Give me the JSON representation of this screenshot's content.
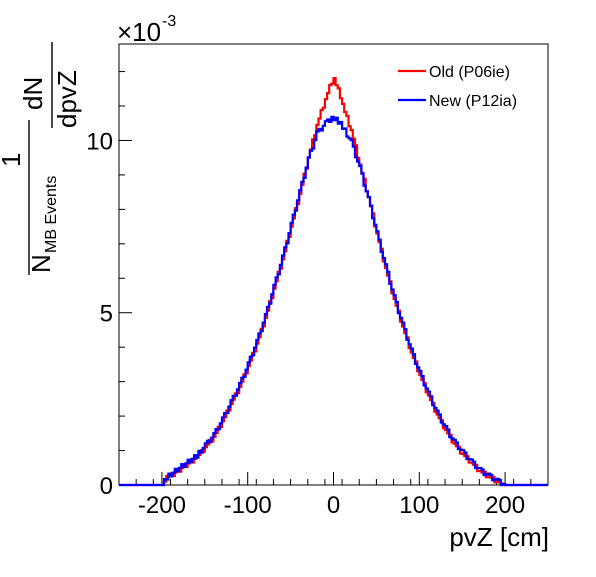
{
  "chart_data": {
    "type": "line",
    "title": "",
    "xlabel": "pvZ [cm]",
    "ylabel": {
      "numerator_one": "1",
      "denominator_n": "N",
      "denominator_sub": "MB Events",
      "fraction_top": "dN",
      "fraction_bottom": "dpvZ"
    },
    "y_exponent": {
      "base": "×10",
      "exponent": "-3"
    },
    "xlim": [
      -250,
      250
    ],
    "ylim": [
      0,
      12.8
    ],
    "x_ticks": [
      -200,
      -100,
      0,
      100,
      200
    ],
    "x_tick_labels": [
      "-200",
      "-100",
      "0",
      "100",
      "200"
    ],
    "y_ticks": [
      0,
      5,
      10
    ],
    "y_tick_labels": [
      "0",
      "5",
      "10"
    ],
    "y_unit_scale": "1e-3",
    "legend_position": "top-right",
    "grid": false,
    "series": [
      {
        "name": "Old (P06ie)",
        "color": "#ff0000",
        "x": [
          -250,
          -200,
          -195,
          -180,
          -160,
          -150,
          -140,
          -130,
          -120,
          -110,
          -100,
          -90,
          -80,
          -70,
          -60,
          -50,
          -40,
          -30,
          -20,
          -10,
          -5,
          0,
          5,
          10,
          20,
          30,
          40,
          50,
          60,
          70,
          80,
          90,
          100,
          110,
          120,
          130,
          140,
          150,
          160,
          170,
          180,
          190,
          200,
          250
        ],
        "values": [
          0,
          0,
          0.2,
          0.45,
          0.8,
          1.1,
          1.4,
          1.85,
          2.35,
          2.85,
          3.45,
          4.1,
          4.85,
          5.7,
          6.55,
          7.5,
          8.45,
          9.5,
          10.45,
          11.2,
          11.55,
          11.75,
          11.45,
          11.0,
          10.3,
          9.3,
          8.35,
          7.3,
          6.3,
          5.4,
          4.6,
          3.85,
          3.2,
          2.6,
          2.05,
          1.6,
          1.2,
          0.9,
          0.65,
          0.4,
          0.25,
          0.1,
          0,
          0
        ]
      },
      {
        "name": "New (P12ia)",
        "color": "#0000ff",
        "x": [
          -250,
          -200,
          -195,
          -180,
          -160,
          -150,
          -140,
          -130,
          -120,
          -110,
          -100,
          -90,
          -80,
          -70,
          -60,
          -50,
          -40,
          -30,
          -20,
          -10,
          -5,
          0,
          5,
          10,
          20,
          30,
          40,
          50,
          60,
          70,
          80,
          90,
          100,
          110,
          120,
          130,
          140,
          150,
          160,
          170,
          180,
          190,
          200,
          250
        ],
        "values": [
          0,
          0,
          0.22,
          0.5,
          0.85,
          1.15,
          1.45,
          1.9,
          2.4,
          2.9,
          3.5,
          4.15,
          4.9,
          5.75,
          6.6,
          7.55,
          8.5,
          9.45,
          10.2,
          10.5,
          10.6,
          10.65,
          10.55,
          10.4,
          9.95,
          9.2,
          8.3,
          7.3,
          6.35,
          5.45,
          4.65,
          3.9,
          3.25,
          2.65,
          2.1,
          1.65,
          1.25,
          0.95,
          0.68,
          0.43,
          0.27,
          0.12,
          0,
          0
        ]
      }
    ]
  }
}
